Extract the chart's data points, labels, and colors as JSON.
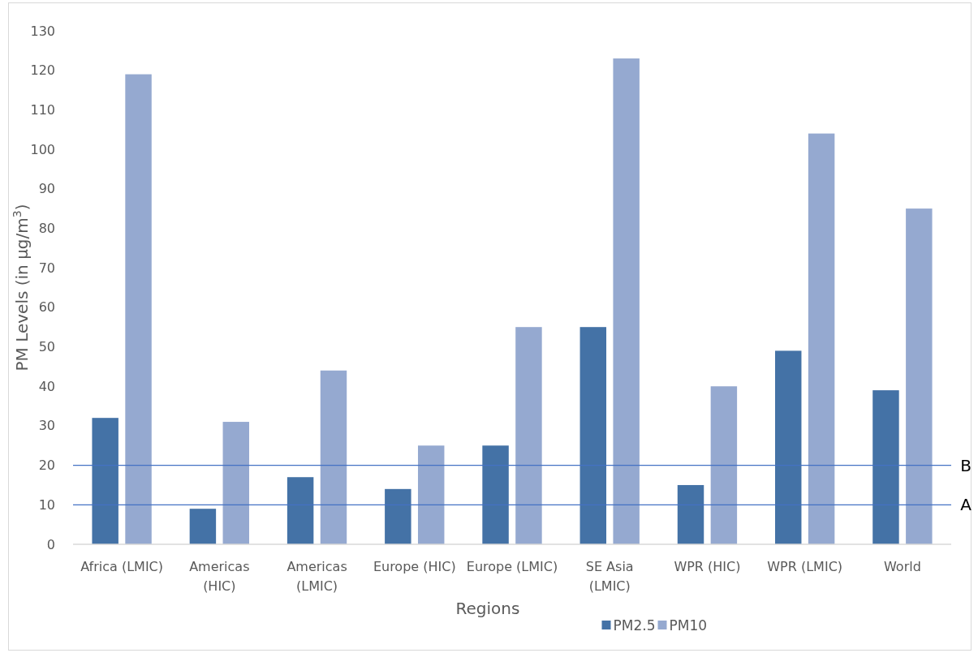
{
  "chart_data": {
    "type": "bar",
    "xlabel": "Regions",
    "ylabel": "PM Levels (in μg/m$^{3}$)",
    "categories": [
      "Africa (LMIC)",
      "Americas (HIC)",
      "Americas (LMIC)",
      "Europe (HIC)",
      "Europe (LMIC)",
      "SE Asia (LMIC)",
      "WPR (HIC)",
      "WPR (LMIC)",
      "World"
    ],
    "series": [
      {
        "name": "PM2.5",
        "color": "#4472a6",
        "values": [
          32,
          9,
          17,
          14,
          25,
          55,
          15,
          49,
          39
        ]
      },
      {
        "name": "PM10",
        "color": "#95a9d0",
        "values": [
          119,
          31,
          44,
          25,
          55,
          123,
          40,
          104,
          85
        ]
      }
    ],
    "ylim": [
      0,
      130
    ],
    "yticks": [
      0,
      10,
      20,
      30,
      40,
      50,
      60,
      70,
      80,
      90,
      100,
      110,
      120,
      130
    ],
    "ref_lines": [
      {
        "axis": "y",
        "value": 20,
        "label": "B",
        "color": "#4472c4"
      },
      {
        "axis": "y",
        "value": 10,
        "label": "A",
        "color": "#4472c4"
      }
    ],
    "grid": false,
    "legend": "bottom"
  }
}
